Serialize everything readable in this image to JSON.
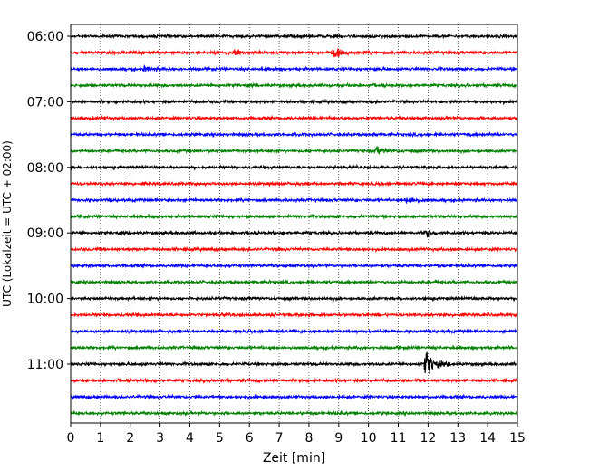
{
  "chart_data": {
    "type": "line",
    "title": "",
    "xlabel": "Zeit  [min]",
    "ylabel": "UTC (Lokalzeit = UTC + 02:00)",
    "xlim": [
      0,
      15
    ],
    "x_ticks": [
      "0",
      "1",
      "2",
      "3",
      "4",
      "5",
      "6",
      "7",
      "8",
      "9",
      "10",
      "11",
      "12",
      "13",
      "14",
      "15"
    ],
    "y_tick_labels": [
      "06:00",
      "07:00",
      "08:00",
      "09:00",
      "10:00",
      "11:00"
    ],
    "grid": "vertical dotted",
    "trace_interval_min": 15,
    "color_cycle": [
      "#000000",
      "#ff0000",
      "#0000ff",
      "#008000"
    ],
    "traces": [
      {
        "start": "06:00",
        "events": []
      },
      {
        "start": "06:15",
        "events": [
          {
            "t": 5.5,
            "amp": 0.55
          },
          {
            "t": 8.85,
            "amp": 0.8
          }
        ]
      },
      {
        "start": "06:30",
        "events": [
          {
            "t": 2.5,
            "amp": 0.35
          }
        ]
      },
      {
        "start": "06:45",
        "events": []
      },
      {
        "start": "07:00",
        "events": []
      },
      {
        "start": "07:15",
        "events": []
      },
      {
        "start": "07:30",
        "events": []
      },
      {
        "start": "07:45",
        "events": [
          {
            "t": 10.3,
            "amp": 0.7
          }
        ]
      },
      {
        "start": "08:00",
        "events": []
      },
      {
        "start": "08:15",
        "events": []
      },
      {
        "start": "08:30",
        "events": [
          {
            "t": 11.3,
            "amp": 0.9
          }
        ]
      },
      {
        "start": "08:45",
        "events": []
      },
      {
        "start": "09:00",
        "events": [
          {
            "t": 11.95,
            "amp": 0.6
          }
        ]
      },
      {
        "start": "09:15",
        "events": []
      },
      {
        "start": "09:30",
        "events": []
      },
      {
        "start": "09:45",
        "events": []
      },
      {
        "start": "10:00",
        "events": []
      },
      {
        "start": "10:15",
        "events": []
      },
      {
        "start": "10:30",
        "events": []
      },
      {
        "start": "10:45",
        "events": []
      },
      {
        "start": "11:00",
        "events": [
          {
            "t": 11.95,
            "amp": 2.6
          }
        ]
      },
      {
        "start": "11:15",
        "events": []
      },
      {
        "start": "11:30",
        "events": []
      },
      {
        "start": "11:45",
        "events": []
      }
    ]
  }
}
